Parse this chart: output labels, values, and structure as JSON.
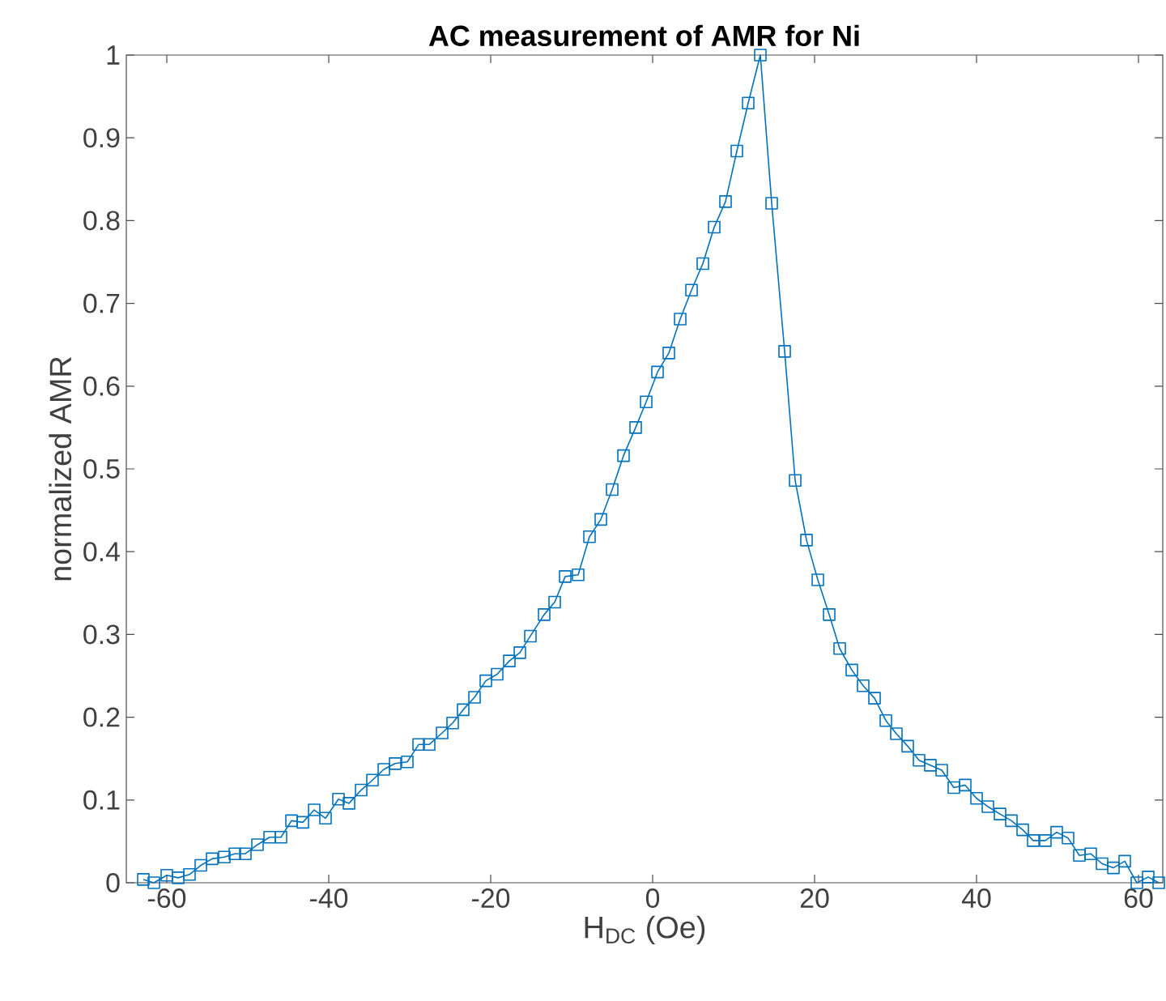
{
  "chart_data": {
    "type": "line",
    "title": "AC measurement of AMR for Ni",
    "xlabel": "H$_{DC}$ (Oe)",
    "ylabel": "normalized AMR",
    "x": [
      -62.9,
      -61.6,
      -60.0,
      -58.6,
      -57.2,
      -55.8,
      -54.4,
      -52.9,
      -51.6,
      -50.3,
      -48.8,
      -47.3,
      -45.9,
      -44.6,
      -43.2,
      -41.8,
      -40.4,
      -38.8,
      -37.5,
      -36.0,
      -34.6,
      -33.2,
      -31.8,
      -30.3,
      -28.9,
      -27.6,
      -26.0,
      -24.7,
      -23.4,
      -22.0,
      -20.6,
      -19.2,
      -17.7,
      -16.4,
      -15.1,
      -13.4,
      -12.1,
      -10.8,
      -9.2,
      -7.8,
      -6.4,
      -5.0,
      -3.6,
      -2.1,
      -0.8,
      0.6,
      2.0,
      3.4,
      4.8,
      6.2,
      7.6,
      9.0,
      10.4,
      11.8,
      13.3,
      14.7,
      16.3,
      17.6,
      19.0,
      20.4,
      21.8,
      23.1,
      24.6,
      26.0,
      27.4,
      28.8,
      30.1,
      31.5,
      32.9,
      34.3,
      35.7,
      37.2,
      38.6,
      40.0,
      41.4,
      42.9,
      44.3,
      45.7,
      47.0,
      48.5,
      49.9,
      51.3,
      52.7,
      54.1,
      55.5,
      56.9,
      58.3,
      59.8,
      61.2,
      62.5
    ],
    "values": [
      0.004,
      0,
      0.009,
      0.006,
      0.01,
      0.021,
      0.029,
      0.031,
      0.035,
      0.035,
      0.046,
      0.055,
      0.055,
      0.075,
      0.073,
      0.088,
      0.078,
      0.101,
      0.096,
      0.112,
      0.124,
      0.137,
      0.144,
      0.146,
      0.167,
      0.167,
      0.181,
      0.193,
      0.209,
      0.224,
      0.244,
      0.252,
      0.268,
      0.278,
      0.298,
      0.324,
      0.339,
      0.37,
      0.372,
      0.418,
      0.439,
      0.475,
      0.516,
      0.55,
      0.581,
      0.617,
      0.64,
      0.681,
      0.716,
      0.748,
      0.792,
      0.823,
      0.884,
      0.942,
      1.0,
      0.821,
      0.642,
      0.486,
      0.414,
      0.366,
      0.324,
      0.283,
      0.257,
      0.238,
      0.223,
      0.196,
      0.18,
      0.165,
      0.148,
      0.142,
      0.136,
      0.115,
      0.118,
      0.102,
      0.092,
      0.083,
      0.075,
      0.064,
      0.051,
      0.051,
      0.061,
      0.054,
      0.033,
      0.035,
      0.023,
      0.018,
      0.026,
      0,
      0.007,
      0
    ],
    "color": "#0072bd",
    "marker": "square",
    "line_style": "solid",
    "xlim": [
      -65,
      63
    ],
    "ylim": [
      0,
      1
    ],
    "xticks": [
      -60,
      -40,
      -20,
      0,
      20,
      40,
      60
    ],
    "yticks": [
      0,
      0.1,
      0.2,
      0.3,
      0.4,
      0.5,
      0.6,
      0.7,
      0.8,
      0.9,
      1
    ]
  }
}
